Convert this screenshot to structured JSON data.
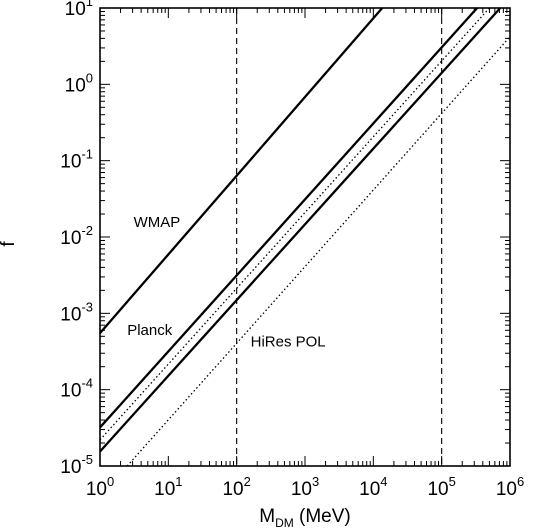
{
  "chart_data": {
    "type": "line",
    "xlabel": "M",
    "xlabel_sub": "DM",
    "xlabel_unit": " (MeV)",
    "ylabel": "f",
    "x_scale": "log",
    "y_scale": "log",
    "xlim": [
      1,
      1000000
    ],
    "ylim": [
      1e-05,
      10
    ],
    "grid": false,
    "x_ticks": [
      {
        "value": 1,
        "base": "10",
        "exp": "0"
      },
      {
        "value": 10,
        "base": "10",
        "exp": "1"
      },
      {
        "value": 100,
        "base": "10",
        "exp": "2"
      },
      {
        "value": 1000,
        "base": "10",
        "exp": "3"
      },
      {
        "value": 10000,
        "base": "10",
        "exp": "4"
      },
      {
        "value": 100000,
        "base": "10",
        "exp": "5"
      },
      {
        "value": 1000000,
        "base": "10",
        "exp": "6"
      }
    ],
    "y_ticks": [
      {
        "value": 1e-05,
        "base": "10",
        "exp": "-5"
      },
      {
        "value": 0.0001,
        "base": "10",
        "exp": "-4"
      },
      {
        "value": 0.001,
        "base": "10",
        "exp": "-3"
      },
      {
        "value": 0.01,
        "base": "10",
        "exp": "-2"
      },
      {
        "value": 0.1,
        "base": "10",
        "exp": "-1"
      },
      {
        "value": 1,
        "base": "10",
        "exp": "0"
      },
      {
        "value": 10,
        "base": "10",
        "exp": "1"
      }
    ],
    "series": [
      {
        "style": "solid",
        "x": [
          1,
          13500
        ],
        "y": [
          0.00055,
          10
        ]
      },
      {
        "style": "solid",
        "x": [
          1,
          330000
        ],
        "y": [
          3.2e-05,
          10
        ]
      },
      {
        "style": "dotted",
        "x": [
          1,
          500000
        ],
        "y": [
          2.2e-05,
          10
        ]
      },
      {
        "style": "solid",
        "x": [
          1,
          720000
        ],
        "y": [
          1.55e-05,
          10
        ]
      },
      {
        "style": "dotted",
        "x": [
          2.5,
          1000000
        ],
        "y": [
          1e-05,
          4.2
        ]
      }
    ],
    "vlines": [
      {
        "x": 100,
        "style": "dashed"
      },
      {
        "x": 100000,
        "style": "dashed"
      }
    ],
    "annotations": [
      {
        "text": "WMAP",
        "x": 3.1,
        "y": 0.0135
      },
      {
        "text": "Planck",
        "x": 2.5,
        "y": 0.00052
      },
      {
        "text": "HiRes POL",
        "x": 160,
        "y": 0.00037
      }
    ]
  }
}
